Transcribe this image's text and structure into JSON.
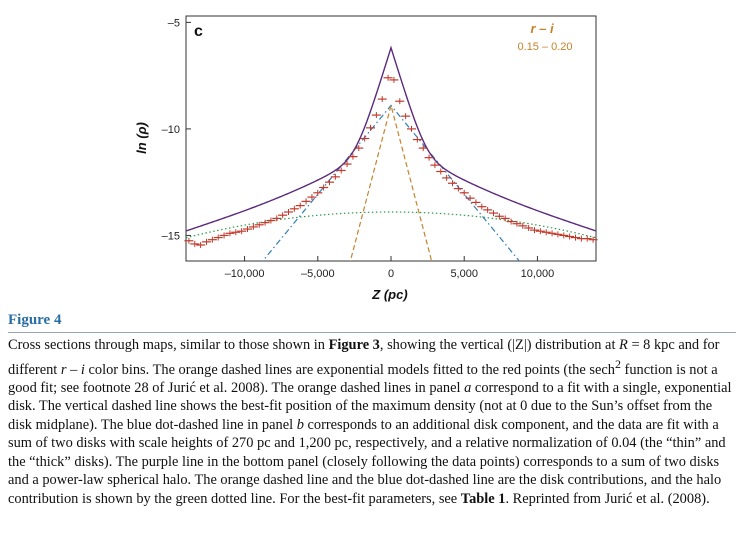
{
  "chart_data": {
    "type": "line",
    "panel_letter": "c",
    "bin_label": "r – i",
    "bin_range": "0.15 – 0.20",
    "xlabel": "Z (pc)",
    "ylabel": "ln (ρ)",
    "xlim": [
      -14000,
      14000
    ],
    "ylim": [
      -16.2,
      -4.7
    ],
    "xticks": [
      -10000,
      -5000,
      0,
      5000,
      10000
    ],
    "xtick_labels": [
      "–10,000",
      "–5,000",
      "0",
      "5,000",
      "10,000"
    ],
    "yticks": [
      -15,
      -10,
      -5
    ],
    "ytick_labels": [
      "–15",
      "–10",
      "–5"
    ],
    "grid": false,
    "colors": {
      "data": "#c0392b",
      "total": "#5b2a7e",
      "thin": "#c9822a",
      "thick": "#2f7fb8",
      "halo": "#2e9a4b"
    },
    "series": [
      {
        "kind": "points",
        "x": [
          -13800,
          -13400,
          -13000,
          -12600,
          -12200,
          -11800,
          -11400,
          -11000,
          -10600,
          -10200,
          -9800,
          -9400,
          -9000,
          -8600,
          -8200,
          -7800,
          -7400,
          -7000,
          -6600,
          -6200,
          -5800,
          -5400,
          -5000,
          -4600,
          -4200,
          -3800,
          -3400,
          -3000,
          -2600,
          -2200,
          -1800,
          -1400,
          -1000,
          -600,
          -200,
          200,
          600,
          1000,
          1400,
          1800,
          2200,
          2600,
          3000,
          3400,
          3800,
          4200,
          4600,
          5000,
          5400,
          5800,
          6200,
          6600,
          7000,
          7400,
          7800,
          8200,
          8600,
          9000,
          9400,
          9800,
          10200,
          10600,
          11000,
          11400,
          11800,
          12200,
          12600,
          13000,
          13400,
          13800
        ],
        "y": [
          -15.25,
          -15.4,
          -15.45,
          -15.3,
          -15.2,
          -15.1,
          -15.0,
          -14.9,
          -14.85,
          -14.8,
          -14.7,
          -14.6,
          -14.5,
          -14.4,
          -14.3,
          -14.2,
          -14.05,
          -13.9,
          -13.75,
          -13.6,
          -13.4,
          -13.2,
          -13.0,
          -12.75,
          -12.5,
          -12.25,
          -11.95,
          -11.65,
          -11.3,
          -10.9,
          -10.45,
          -9.95,
          -9.35,
          -8.6,
          -7.6,
          -7.7,
          -8.7,
          -9.4,
          -10.0,
          -10.5,
          -10.9,
          -11.35,
          -11.7,
          -12.0,
          -12.3,
          -12.55,
          -12.8,
          -13.0,
          -13.25,
          -13.45,
          -13.65,
          -13.8,
          -13.95,
          -14.1,
          -14.2,
          -14.35,
          -14.45,
          -14.55,
          -14.65,
          -14.75,
          -14.8,
          -14.85,
          -14.9,
          -14.95,
          -15.0,
          -15.05,
          -15.1,
          -15.15,
          -15.15,
          -15.2
        ]
      }
    ]
  },
  "figure": {
    "title": "Figure 4",
    "caption": {
      "p1": "Cross sections through maps, similar to those shown in ",
      "fig3": "Figure 3",
      "p2": ", showing the vertical (|Z|) distribution at ",
      "r": "R",
      "p3": " = 8 kpc and for different ",
      "ri": "r",
      "p4": " – ",
      "ii": "i",
      "p5": " color bins. The orange dashed lines are exponential models fitted to the red points (the sech",
      "sup": "2",
      "p6": " function is not a good fit; see footnote 28 of Jurić et al. 2008). The orange dashed lines in panel ",
      "a": "a",
      "p7": " correspond to a fit with a single, exponential disk. The vertical dashed line shows the best-fit position of the maximum density (not at 0 due to the Sun’s offset from the disk midplane). The blue dot-dashed line in panel ",
      "b": "b",
      "p8": " corresponds to an additional disk component, and the data are fit with a sum of two disks with scale heights of 270 pc and 1,200 pc, respectively, and a relative normalization of 0.04 (the “thin” and the “thick” disks). The purple line in the bottom panel (closely following the data points) corresponds to a sum of two disks and a power-law spherical halo. The orange dashed line and the blue dot-dashed line are the disk contributions, and the halo contribution is shown by the green dotted line. For the best-fit parameters, see ",
      "table1": "Table 1",
      "p9": ". Reprinted from Jurić et al. (2008)."
    }
  }
}
